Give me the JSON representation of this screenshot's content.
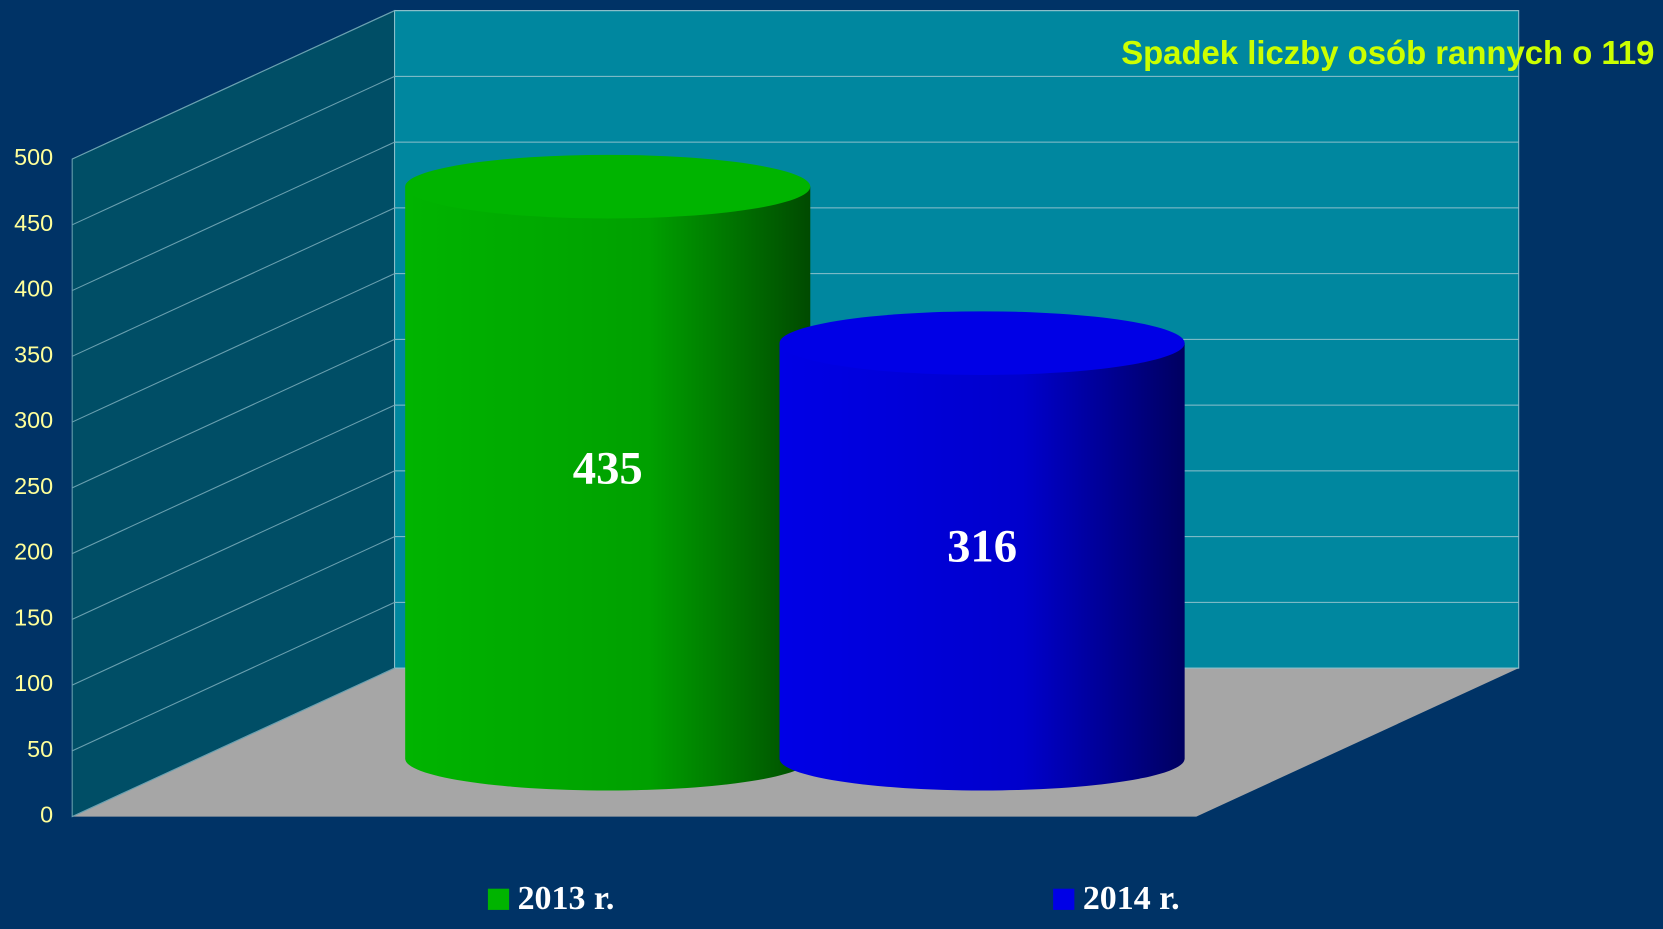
{
  "chart_data": {
    "type": "cylinder",
    "annotation": "Spadek liczby osób rannych o 119",
    "series": [
      {
        "name": "2013 r.",
        "color": "#00b400",
        "values": [
          435
        ]
      },
      {
        "name": "2014 r.",
        "color": "#0000e6",
        "values": [
          316
        ]
      }
    ],
    "ylim": [
      0,
      500
    ],
    "yticks": [
      0,
      50,
      100,
      150,
      200,
      250,
      300,
      350,
      400,
      450,
      500
    ],
    "grid": true
  }
}
